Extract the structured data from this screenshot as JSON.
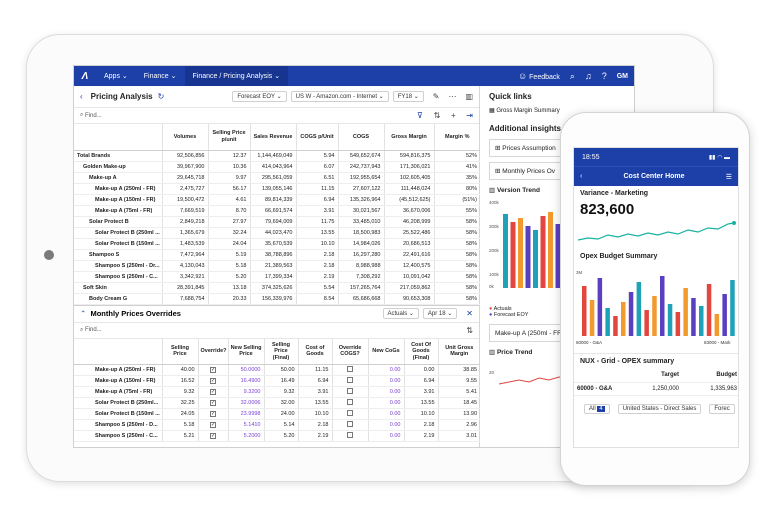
{
  "topbar": {
    "apps_label": "Apps",
    "finance_label": "Finance",
    "breadcrumb": "Finance / Pricing Analysis",
    "feedback_label": "Feedback",
    "avatar": "GM"
  },
  "toolbar": {
    "title": "Pricing Analysis",
    "forecast": "Forecast EOY",
    "channel": "US W - Amazon.com - Internet",
    "year": "FY18"
  },
  "find_placeholder": "Find...",
  "grid": {
    "headers": [
      "Volumes",
      "Selling Price p/unit",
      "Sales Revenue",
      "COGS p/Unit",
      "COGS",
      "Gross Margin",
      "Margin %"
    ],
    "rows": [
      {
        "label": "Total Brands",
        "values": [
          "92,506,856",
          "12.37",
          "1,144,469,049",
          "5.94",
          "549,652,674",
          "594,816,375",
          "52%"
        ]
      },
      {
        "label": "Golden Make-up",
        "values": [
          "39,967,900",
          "10.36",
          "414,043,964",
          "6.07",
          "242,737,943",
          "171,306,021",
          "41%"
        ]
      },
      {
        "label": "Make-up A",
        "values": [
          "29,645,718",
          "9.97",
          "295,561,059",
          "6.51",
          "192,955,654",
          "102,605,405",
          "35%"
        ]
      },
      {
        "label": "Make-up A (250ml - FR)",
        "values": [
          "2,475,727",
          "56.17",
          "139,055,146",
          "11.15",
          "27,607,122",
          "111,448,024",
          "80%"
        ]
      },
      {
        "label": "Make-up A (150ml - FR)",
        "values": [
          "19,500,472",
          "4.61",
          "89,814,339",
          "6.94",
          "135,326,964",
          "(45,512,625)",
          "(51%)"
        ]
      },
      {
        "label": "Make-up A (75ml - FR)",
        "values": [
          "7,669,519",
          "8.70",
          "66,691,574",
          "3.91",
          "30,021,567",
          "36,670,006",
          "55%"
        ]
      },
      {
        "label": "Solar Protect B",
        "values": [
          "2,849,218",
          "27.97",
          "79,694,009",
          "11.75",
          "33,485,010",
          "46,208,999",
          "58%"
        ]
      },
      {
        "label": "Solar Protect B (250ml ...",
        "values": [
          "1,365,679",
          "32.24",
          "44,023,470",
          "13.55",
          "18,500,983",
          "25,522,486",
          "58%"
        ]
      },
      {
        "label": "Solar Protect B (150ml ...",
        "values": [
          "1,483,539",
          "24.04",
          "35,670,539",
          "10.10",
          "14,984,026",
          "20,686,513",
          "58%"
        ]
      },
      {
        "label": "Shampoo S",
        "values": [
          "7,472,964",
          "5.19",
          "38,788,896",
          "2.18",
          "16,297,280",
          "22,491,616",
          "58%"
        ]
      },
      {
        "label": "Shampoo S (250ml - Dr...",
        "values": [
          "4,130,043",
          "5.18",
          "21,389,563",
          "2.18",
          "8,988,988",
          "12,400,575",
          "58%"
        ]
      },
      {
        "label": "Shampoo S (250ml - C...",
        "values": [
          "3,342,921",
          "5.20",
          "17,399,334",
          "2.19",
          "7,308,292",
          "10,091,042",
          "58%"
        ]
      },
      {
        "label": "Soft Skin",
        "values": [
          "28,391,845",
          "13.18",
          "374,325,626",
          "5.54",
          "157,265,764",
          "217,059,862",
          "58%"
        ]
      },
      {
        "label": "Body Cream G",
        "values": [
          "7,688,754",
          "20.33",
          "156,339,976",
          "8.54",
          "65,686,668",
          "90,653,308",
          "58%"
        ]
      }
    ]
  },
  "overrides": {
    "title": "Monthly Prices Overrides",
    "actuals": "Actuals",
    "month": "Apr 18",
    "headers": [
      "Selling Price",
      "Override?",
      "New Selling Price",
      "Selling Price (Final)",
      "Cost of Goods",
      "Override COGS?",
      "New CoGs",
      "Cost Of Goods (Final)",
      "Unit Gross Margin"
    ],
    "rows": [
      {
        "label": "Make-up A (250ml - FR)",
        "values": [
          "40.00",
          "50.0000",
          "50.00",
          "11.15",
          "0.00",
          "0.00",
          "38.85"
        ]
      },
      {
        "label": "Make-up A (150ml - FR)",
        "values": [
          "16.52",
          "16.4900",
          "16.49",
          "6.94",
          "0.00",
          "6.94",
          "9.55"
        ]
      },
      {
        "label": "Make-up A (75ml - FR)",
        "values": [
          "9.32",
          "9.3200",
          "9.32",
          "3.91",
          "0.00",
          "3.91",
          "5.41"
        ]
      },
      {
        "label": "Solar Protect B (250ml...",
        "values": [
          "32.25",
          "32.0006",
          "32.00",
          "13.55",
          "0.00",
          "13.55",
          "18.45"
        ]
      },
      {
        "label": "Solar Protect B (150ml ...",
        "values": [
          "24.05",
          "23.9998",
          "24.00",
          "10.10",
          "0.00",
          "10.10",
          "13.90"
        ]
      },
      {
        "label": "Shampoo S (250ml - D...",
        "values": [
          "5.18",
          "5.1410",
          "5.14",
          "2.18",
          "0.00",
          "2.18",
          "2.96"
        ]
      },
      {
        "label": "Shampoo S (250ml - C...",
        "values": [
          "5.21",
          "5.2000",
          "5.20",
          "2.19",
          "0.00",
          "2.19",
          "3.01"
        ]
      }
    ]
  },
  "right_pane": {
    "quick_links": "Quick links",
    "gross_margin_summary": "Gross Margin Summary",
    "additional_insights": "Additional insights",
    "prices_assumption": "Prices Assumption",
    "monthly_prices": "Monthly Prices Ov",
    "version_trend": "Version Trend",
    "legend_actuals": "Actuals",
    "legend_forecast": "Forecast EOY",
    "row_label": "Make-up A (250ml - FR)",
    "price_trend": "Price Trend",
    "axis_400k": "400k",
    "axis_300k": "300k",
    "axis_200k": "200k",
    "axis_100k": "100k",
    "axis_0k": "0k",
    "axis_20": "20"
  },
  "phone": {
    "time": "18:55",
    "title": "Cost Center Home",
    "variance_label": "Variance - Marketing",
    "variance_value": "823,600",
    "opex_label": "Opex Budget Summary",
    "axis_3m": "3M",
    "axis_left": "60000 - G&A",
    "axis_right": "83000 - Mark",
    "nux_label": "NUX - Grid - OPEX summary",
    "col_target": "Target",
    "col_budget": "Budget",
    "row_label": "60000 - G&A",
    "row_target": "1,250,000",
    "row_budget": "1,335,963",
    "filter_all": "All",
    "filter_count": "4",
    "filter_region": "United States - Direct Sales",
    "filter_more": "Forec"
  },
  "colors": {
    "brand_blue": "#1c3fa8",
    "bar_teal": "#1fa2b8",
    "bar_red": "#e2463f",
    "bar_orange": "#f29a2e",
    "bar_purple": "#5a3fc0",
    "line_teal": "#17b3a3"
  }
}
